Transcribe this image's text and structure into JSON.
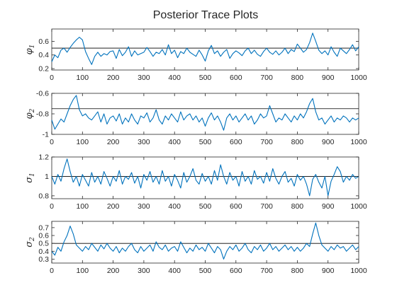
{
  "figure": {
    "title": "Posterior Trace Plots"
  },
  "chart_data": [
    {
      "type": "line",
      "ylabel": {
        "symbol": "φ",
        "subscript": "1"
      },
      "xlim": [
        0,
        1000
      ],
      "ylim": [
        0.18,
        0.78
      ],
      "xticks": [
        0,
        100,
        200,
        300,
        400,
        500,
        600,
        700,
        800,
        900,
        1000
      ],
      "xtick_labels": [
        "0",
        "100",
        "200",
        "300",
        "400",
        "500",
        "600",
        "700",
        "800",
        "900",
        "1000"
      ],
      "yticks": [
        0.2,
        0.4,
        0.6
      ],
      "ytick_labels": [
        "0.2",
        "0.4",
        "0.6"
      ],
      "reference_line": 0.5,
      "series_color": "#0072BD",
      "x": [
        0,
        10,
        20,
        30,
        40,
        50,
        60,
        70,
        80,
        90,
        100,
        110,
        120,
        130,
        140,
        150,
        160,
        170,
        180,
        190,
        200,
        210,
        220,
        230,
        240,
        250,
        260,
        270,
        280,
        290,
        300,
        310,
        320,
        330,
        340,
        350,
        360,
        370,
        380,
        390,
        400,
        410,
        420,
        430,
        440,
        450,
        460,
        470,
        480,
        490,
        500,
        510,
        520,
        530,
        540,
        550,
        560,
        570,
        580,
        590,
        600,
        610,
        620,
        630,
        640,
        650,
        660,
        670,
        680,
        690,
        700,
        710,
        720,
        730,
        740,
        750,
        760,
        770,
        780,
        790,
        800,
        810,
        820,
        830,
        840,
        850,
        860,
        870,
        880,
        890,
        900,
        910,
        920,
        930,
        940,
        950,
        960,
        970,
        980,
        990,
        1000
      ],
      "y": [
        0.3,
        0.4,
        0.36,
        0.47,
        0.5,
        0.44,
        0.51,
        0.57,
        0.62,
        0.66,
        0.62,
        0.45,
        0.35,
        0.26,
        0.38,
        0.44,
        0.38,
        0.42,
        0.4,
        0.45,
        0.46,
        0.35,
        0.48,
        0.39,
        0.44,
        0.52,
        0.38,
        0.46,
        0.4,
        0.42,
        0.44,
        0.51,
        0.45,
        0.38,
        0.44,
        0.42,
        0.48,
        0.4,
        0.55,
        0.42,
        0.47,
        0.36,
        0.45,
        0.42,
        0.5,
        0.44,
        0.41,
        0.38,
        0.47,
        0.4,
        0.31,
        0.46,
        0.54,
        0.42,
        0.46,
        0.38,
        0.44,
        0.48,
        0.35,
        0.42,
        0.46,
        0.43,
        0.39,
        0.46,
        0.5,
        0.42,
        0.47,
        0.41,
        0.38,
        0.45,
        0.5,
        0.44,
        0.41,
        0.46,
        0.4,
        0.44,
        0.5,
        0.42,
        0.48,
        0.45,
        0.56,
        0.5,
        0.44,
        0.48,
        0.58,
        0.72,
        0.6,
        0.47,
        0.42,
        0.46,
        0.4,
        0.52,
        0.44,
        0.38,
        0.5,
        0.46,
        0.42,
        0.48,
        0.55,
        0.46,
        0.52
      ]
    },
    {
      "type": "line",
      "ylabel": {
        "symbol": "φ",
        "subscript": "2"
      },
      "xlim": [
        0,
        1000
      ],
      "ylim": [
        -1.0,
        -0.6
      ],
      "xticks": [
        0,
        100,
        200,
        300,
        400,
        500,
        600,
        700,
        800,
        900,
        1000
      ],
      "xtick_labels": [
        "0",
        "100",
        "200",
        "300",
        "400",
        "500",
        "600",
        "700",
        "800",
        "900",
        "1000"
      ],
      "yticks": [
        -1,
        -0.8,
        -0.6
      ],
      "ytick_labels": [
        "-1",
        "-0.8",
        "-0.6"
      ],
      "reference_line": -0.75,
      "series_color": "#0072BD",
      "x": [
        0,
        10,
        20,
        30,
        40,
        50,
        60,
        70,
        80,
        90,
        100,
        110,
        120,
        130,
        140,
        150,
        160,
        170,
        180,
        190,
        200,
        210,
        220,
        230,
        240,
        250,
        260,
        270,
        280,
        290,
        300,
        310,
        320,
        330,
        340,
        350,
        360,
        370,
        380,
        390,
        400,
        410,
        420,
        430,
        440,
        450,
        460,
        470,
        480,
        490,
        500,
        510,
        520,
        530,
        540,
        550,
        560,
        570,
        580,
        590,
        600,
        610,
        620,
        630,
        640,
        650,
        660,
        670,
        680,
        690,
        700,
        710,
        720,
        730,
        740,
        750,
        760,
        770,
        780,
        790,
        800,
        810,
        820,
        830,
        840,
        850,
        860,
        870,
        880,
        890,
        900,
        910,
        920,
        930,
        940,
        950,
        960,
        970,
        980,
        990,
        1000
      ],
      "y": [
        -0.86,
        -0.95,
        -0.9,
        -0.85,
        -0.88,
        -0.8,
        -0.72,
        -0.66,
        -0.62,
        -0.76,
        -0.82,
        -0.8,
        -0.84,
        -0.86,
        -0.82,
        -0.78,
        -0.88,
        -0.8,
        -0.9,
        -0.84,
        -0.82,
        -0.87,
        -0.8,
        -0.9,
        -0.84,
        -0.88,
        -0.8,
        -0.86,
        -0.9,
        -0.82,
        -0.84,
        -0.79,
        -0.88,
        -0.84,
        -0.76,
        -0.86,
        -0.9,
        -0.82,
        -0.86,
        -0.8,
        -0.84,
        -0.88,
        -0.78,
        -0.86,
        -0.82,
        -0.8,
        -0.86,
        -0.82,
        -0.88,
        -0.84,
        -0.92,
        -0.84,
        -0.79,
        -0.86,
        -0.82,
        -0.88,
        -0.96,
        -0.84,
        -0.8,
        -0.86,
        -0.82,
        -0.88,
        -0.84,
        -0.8,
        -0.86,
        -0.82,
        -0.9,
        -0.86,
        -0.8,
        -0.84,
        -0.82,
        -0.72,
        -0.8,
        -0.88,
        -0.84,
        -0.86,
        -0.8,
        -0.84,
        -0.88,
        -0.82,
        -0.86,
        -0.8,
        -0.84,
        -0.78,
        -0.7,
        -0.65,
        -0.78,
        -0.86,
        -0.84,
        -0.9,
        -0.86,
        -0.82,
        -0.88,
        -0.84,
        -0.86,
        -0.82,
        -0.84,
        -0.88,
        -0.84,
        -0.86,
        -0.84
      ]
    },
    {
      "type": "line",
      "ylabel": {
        "symbol": "σ",
        "subscript": "1"
      },
      "xlim": [
        0,
        1000
      ],
      "ylim": [
        0.77,
        1.2
      ],
      "xticks": [
        0,
        100,
        200,
        300,
        400,
        500,
        600,
        700,
        800,
        900,
        1000
      ],
      "xtick_labels": [
        "0",
        "100",
        "200",
        "300",
        "400",
        "500",
        "600",
        "700",
        "800",
        "900",
        "1000"
      ],
      "yticks": [
        0.8,
        1.0,
        1.2
      ],
      "ytick_labels": [
        "0.8",
        "1",
        "1.2"
      ],
      "reference_line": 1.0,
      "series_color": "#0072BD",
      "x": [
        0,
        10,
        20,
        30,
        40,
        50,
        60,
        70,
        80,
        90,
        100,
        110,
        120,
        130,
        140,
        150,
        160,
        170,
        180,
        190,
        200,
        210,
        220,
        230,
        240,
        250,
        260,
        270,
        280,
        290,
        300,
        310,
        320,
        330,
        340,
        350,
        360,
        370,
        380,
        390,
        400,
        410,
        420,
        430,
        440,
        450,
        460,
        470,
        480,
        490,
        500,
        510,
        520,
        530,
        540,
        550,
        560,
        570,
        580,
        590,
        600,
        610,
        620,
        630,
        640,
        650,
        660,
        670,
        680,
        690,
        700,
        710,
        720,
        730,
        740,
        750,
        760,
        770,
        780,
        790,
        800,
        810,
        820,
        830,
        840,
        850,
        860,
        870,
        880,
        890,
        900,
        910,
        920,
        930,
        940,
        950,
        960,
        970,
        980,
        990,
        1000
      ],
      "y": [
        1.0,
        0.92,
        1.02,
        0.95,
        1.08,
        1.18,
        1.05,
        0.94,
        1.0,
        0.9,
        1.02,
        0.96,
        0.9,
        1.04,
        0.94,
        1.0,
        0.92,
        1.05,
        0.98,
        0.9,
        1.0,
        0.95,
        1.06,
        0.92,
        1.0,
        0.97,
        1.04,
        0.93,
        1.0,
        0.88,
        1.02,
        0.96,
        1.05,
        0.94,
        1.0,
        0.92,
        1.06,
        0.95,
        1.0,
        0.9,
        1.02,
        0.96,
        0.88,
        1.04,
        0.94,
        1.0,
        1.08,
        0.96,
        0.92,
        1.03,
        0.95,
        1.0,
        0.92,
        1.06,
        0.96,
        1.12,
        1.0,
        0.92,
        1.04,
        0.96,
        1.0,
        0.9,
        1.05,
        0.95,
        1.0,
        0.92,
        1.06,
        0.97,
        1.0,
        0.93,
        1.04,
        0.95,
        1.08,
        0.98,
        0.92,
        1.0,
        1.05,
        0.94,
        0.98,
        0.9,
        1.02,
        0.96,
        1.0,
        0.92,
        0.8,
        0.97,
        1.02,
        0.94,
        0.88,
        1.0,
        0.8,
        0.95,
        1.02,
        1.1,
        1.05,
        0.94,
        1.0,
        0.96,
        1.02,
        0.98,
        1.0
      ]
    },
    {
      "type": "line",
      "ylabel": {
        "symbol": "σ",
        "subscript": "2"
      },
      "xlim": [
        0,
        1000
      ],
      "ylim": [
        0.25,
        0.78
      ],
      "xticks": [
        0,
        100,
        200,
        300,
        400,
        500,
        600,
        700,
        800,
        900,
        1000
      ],
      "xtick_labels": [
        "0",
        "100",
        "200",
        "300",
        "400",
        "500",
        "600",
        "700",
        "800",
        "900",
        "1000"
      ],
      "yticks": [
        0.3,
        0.4,
        0.5,
        0.6,
        0.7
      ],
      "ytick_labels": [
        "0.3",
        "0.4",
        "0.5",
        "0.6",
        "0.7"
      ],
      "reference_line": 0.5,
      "series_color": "#0072BD",
      "x": [
        0,
        10,
        20,
        30,
        40,
        50,
        60,
        70,
        80,
        90,
        100,
        110,
        120,
        130,
        140,
        150,
        160,
        170,
        180,
        190,
        200,
        210,
        220,
        230,
        240,
        250,
        260,
        270,
        280,
        290,
        300,
        310,
        320,
        330,
        340,
        350,
        360,
        370,
        380,
        390,
        400,
        410,
        420,
        430,
        440,
        450,
        460,
        470,
        480,
        490,
        500,
        510,
        520,
        530,
        540,
        550,
        560,
        570,
        580,
        590,
        600,
        610,
        620,
        630,
        640,
        650,
        660,
        670,
        680,
        690,
        700,
        710,
        720,
        730,
        740,
        750,
        760,
        770,
        780,
        790,
        800,
        810,
        820,
        830,
        840,
        850,
        860,
        870,
        880,
        890,
        900,
        910,
        920,
        930,
        940,
        950,
        960,
        970,
        980,
        990,
        1000
      ],
      "y": [
        0.4,
        0.35,
        0.45,
        0.4,
        0.52,
        0.6,
        0.72,
        0.62,
        0.48,
        0.44,
        0.4,
        0.46,
        0.42,
        0.5,
        0.45,
        0.4,
        0.48,
        0.43,
        0.5,
        0.44,
        0.4,
        0.46,
        0.38,
        0.44,
        0.4,
        0.46,
        0.5,
        0.42,
        0.38,
        0.46,
        0.4,
        0.44,
        0.48,
        0.4,
        0.52,
        0.45,
        0.42,
        0.48,
        0.4,
        0.44,
        0.46,
        0.4,
        0.52,
        0.45,
        0.38,
        0.44,
        0.4,
        0.48,
        0.42,
        0.45,
        0.4,
        0.5,
        0.44,
        0.38,
        0.46,
        0.42,
        0.3,
        0.4,
        0.46,
        0.42,
        0.48,
        0.4,
        0.44,
        0.5,
        0.42,
        0.38,
        0.46,
        0.42,
        0.48,
        0.4,
        0.44,
        0.5,
        0.42,
        0.46,
        0.4,
        0.44,
        0.48,
        0.42,
        0.46,
        0.4,
        0.45,
        0.4,
        0.44,
        0.5,
        0.46,
        0.62,
        0.76,
        0.6,
        0.48,
        0.44,
        0.4,
        0.46,
        0.42,
        0.48,
        0.44,
        0.46,
        0.4,
        0.44,
        0.48,
        0.42,
        0.46
      ]
    }
  ]
}
